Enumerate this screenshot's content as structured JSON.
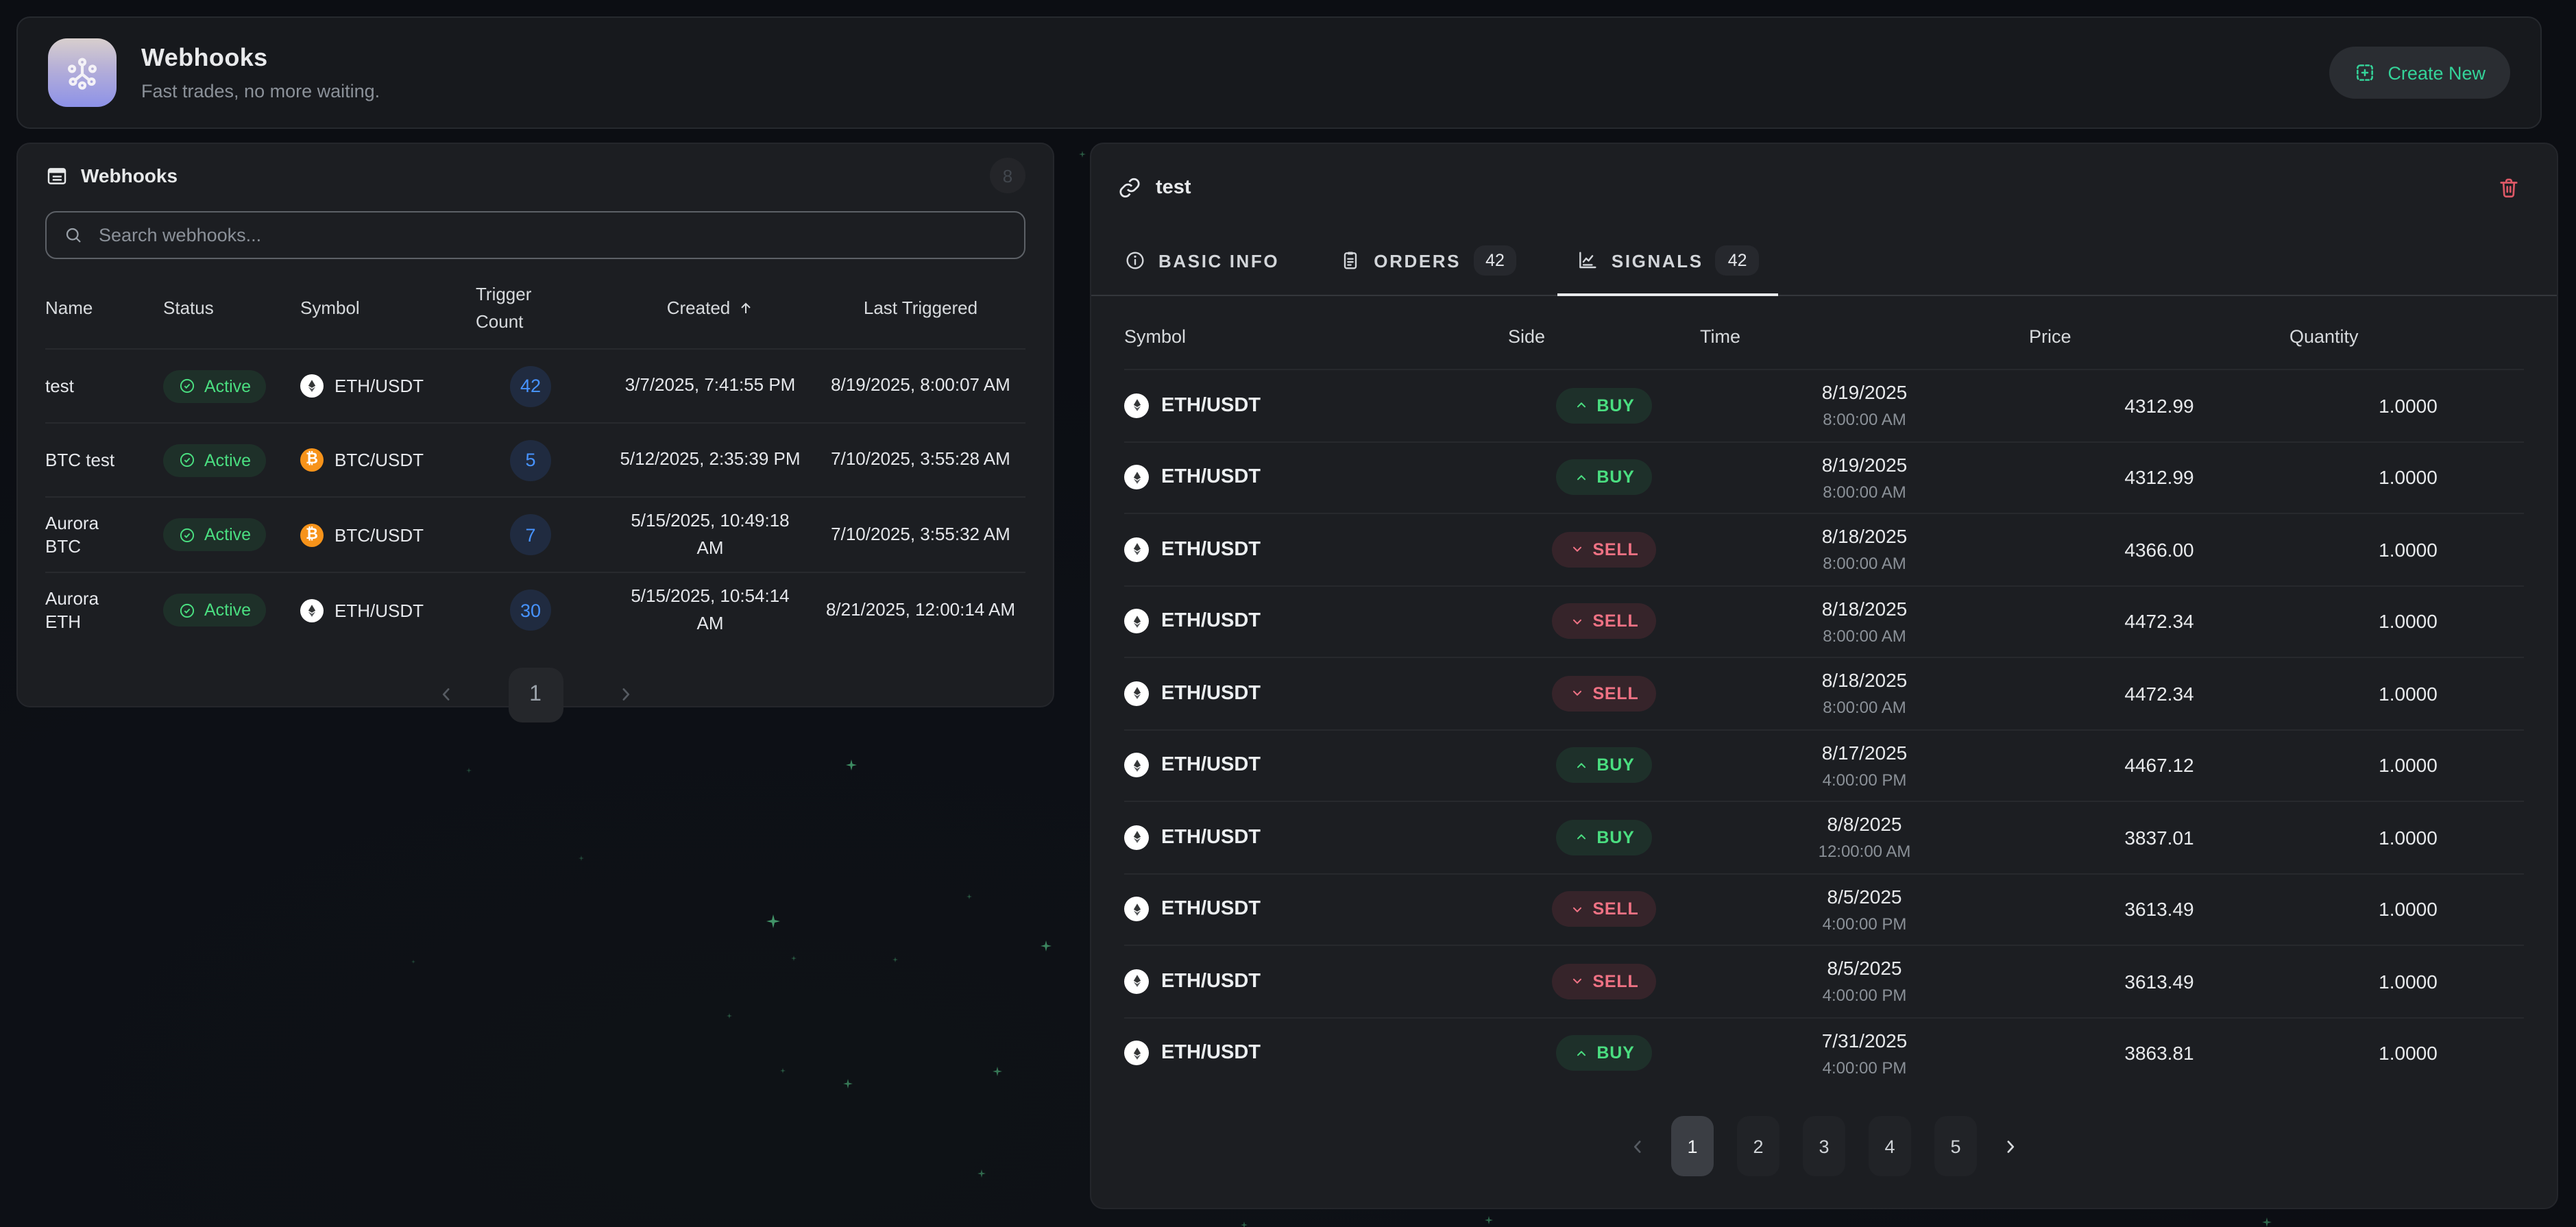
{
  "header": {
    "title": "Webhooks",
    "subtitle": "Fast trades, no more waiting.",
    "create_button": "Create New"
  },
  "left_panel": {
    "title": "Webhooks",
    "count_badge": "8",
    "search_placeholder": "Search webhooks...",
    "columns": {
      "name": "Name",
      "status": "Status",
      "symbol": "Symbol",
      "trigger": "Trigger Count",
      "created": "Created",
      "last_triggered": "Last Triggered"
    },
    "sort_column": "Created",
    "rows": [
      {
        "name": "test",
        "status": "Active",
        "symbol": "ETH/USDT",
        "coin": "eth",
        "trigger_count": "42",
        "created": "3/7/2025, 7:41:55 PM",
        "last_triggered": "8/19/2025, 8:00:07 AM"
      },
      {
        "name": "BTC test",
        "status": "Active",
        "symbol": "BTC/USDT",
        "coin": "btc",
        "trigger_count": "5",
        "created": "5/12/2025, 2:35:39 PM",
        "last_triggered": "7/10/2025, 3:55:28 AM"
      },
      {
        "name": "Aurora BTC",
        "status": "Active",
        "symbol": "BTC/USDT",
        "coin": "btc",
        "trigger_count": "7",
        "created": "5/15/2025, 10:49:18 AM",
        "last_triggered": "7/10/2025, 3:55:32 AM"
      },
      {
        "name": "Aurora ETH",
        "status": "Active",
        "symbol": "ETH/USDT",
        "coin": "eth",
        "trigger_count": "30",
        "created": "5/15/2025, 10:54:14 AM",
        "last_triggered": "8/21/2025, 12:00:14 AM"
      }
    ],
    "pagination": {
      "current": "1"
    }
  },
  "detail_panel": {
    "title": "test",
    "tabs": [
      {
        "label": "BASIC INFO",
        "badge": "",
        "active": false
      },
      {
        "label": "ORDERS",
        "badge": "42",
        "active": false
      },
      {
        "label": "SIGNALS",
        "badge": "42",
        "active": true
      }
    ],
    "columns": {
      "symbol": "Symbol",
      "side": "Side",
      "time": "Time",
      "price": "Price",
      "quantity": "Quantity"
    },
    "rows": [
      {
        "symbol": "ETH/USDT",
        "coin": "eth",
        "side": "BUY",
        "date": "8/19/2025",
        "time": "8:00:00 AM",
        "price": "4312.99",
        "quantity": "1.0000"
      },
      {
        "symbol": "ETH/USDT",
        "coin": "eth",
        "side": "BUY",
        "date": "8/19/2025",
        "time": "8:00:00 AM",
        "price": "4312.99",
        "quantity": "1.0000"
      },
      {
        "symbol": "ETH/USDT",
        "coin": "eth",
        "side": "SELL",
        "date": "8/18/2025",
        "time": "8:00:00 AM",
        "price": "4366.00",
        "quantity": "1.0000"
      },
      {
        "symbol": "ETH/USDT",
        "coin": "eth",
        "side": "SELL",
        "date": "8/18/2025",
        "time": "8:00:00 AM",
        "price": "4472.34",
        "quantity": "1.0000"
      },
      {
        "symbol": "ETH/USDT",
        "coin": "eth",
        "side": "SELL",
        "date": "8/18/2025",
        "time": "8:00:00 AM",
        "price": "4472.34",
        "quantity": "1.0000"
      },
      {
        "symbol": "ETH/USDT",
        "coin": "eth",
        "side": "BUY",
        "date": "8/17/2025",
        "time": "4:00:00 PM",
        "price": "4467.12",
        "quantity": "1.0000"
      },
      {
        "symbol": "ETH/USDT",
        "coin": "eth",
        "side": "BUY",
        "date": "8/8/2025",
        "time": "12:00:00 AM",
        "price": "3837.01",
        "quantity": "1.0000"
      },
      {
        "symbol": "ETH/USDT",
        "coin": "eth",
        "side": "SELL",
        "date": "8/5/2025",
        "time": "4:00:00 PM",
        "price": "3613.49",
        "quantity": "1.0000"
      },
      {
        "symbol": "ETH/USDT",
        "coin": "eth",
        "side": "SELL",
        "date": "8/5/2025",
        "time": "4:00:00 PM",
        "price": "3613.49",
        "quantity": "1.0000"
      },
      {
        "symbol": "ETH/USDT",
        "coin": "eth",
        "side": "BUY",
        "date": "7/31/2025",
        "time": "4:00:00 PM",
        "price": "3863.81",
        "quantity": "1.0000"
      }
    ],
    "pagination": {
      "pages": [
        "1",
        "2",
        "3",
        "4",
        "5"
      ],
      "current": "1"
    }
  },
  "colors": {
    "accent_green": "#34d399",
    "buy": "#4ade80",
    "sell": "#ef7284",
    "trigger_blue": "#4793ff",
    "danger": "#dd5866",
    "page_bg": "#0c0e13",
    "panel_bg": "#1c1e22",
    "icon_gradient_top": "#d8cfcd",
    "icon_gradient_bottom": "#8d92e8"
  }
}
